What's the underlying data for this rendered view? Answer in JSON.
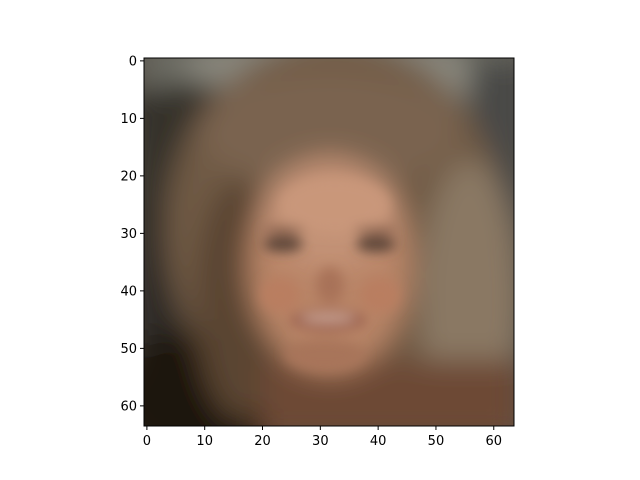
{
  "image": {
    "subject": "blurry-face",
    "pixel_grid": [
      64,
      64
    ]
  },
  "axes": {
    "x_ticks": [
      "0",
      "10",
      "20",
      "30",
      "40",
      "50",
      "60"
    ],
    "y_ticks": [
      "0",
      "10",
      "20",
      "30",
      "40",
      "50",
      "60"
    ],
    "x_range": [
      -0.5,
      63.5
    ],
    "y_range": [
      -0.5,
      63.5
    ],
    "y_inverted": true
  },
  "colors": {
    "background": "#ffffff",
    "axis": "#000000"
  }
}
